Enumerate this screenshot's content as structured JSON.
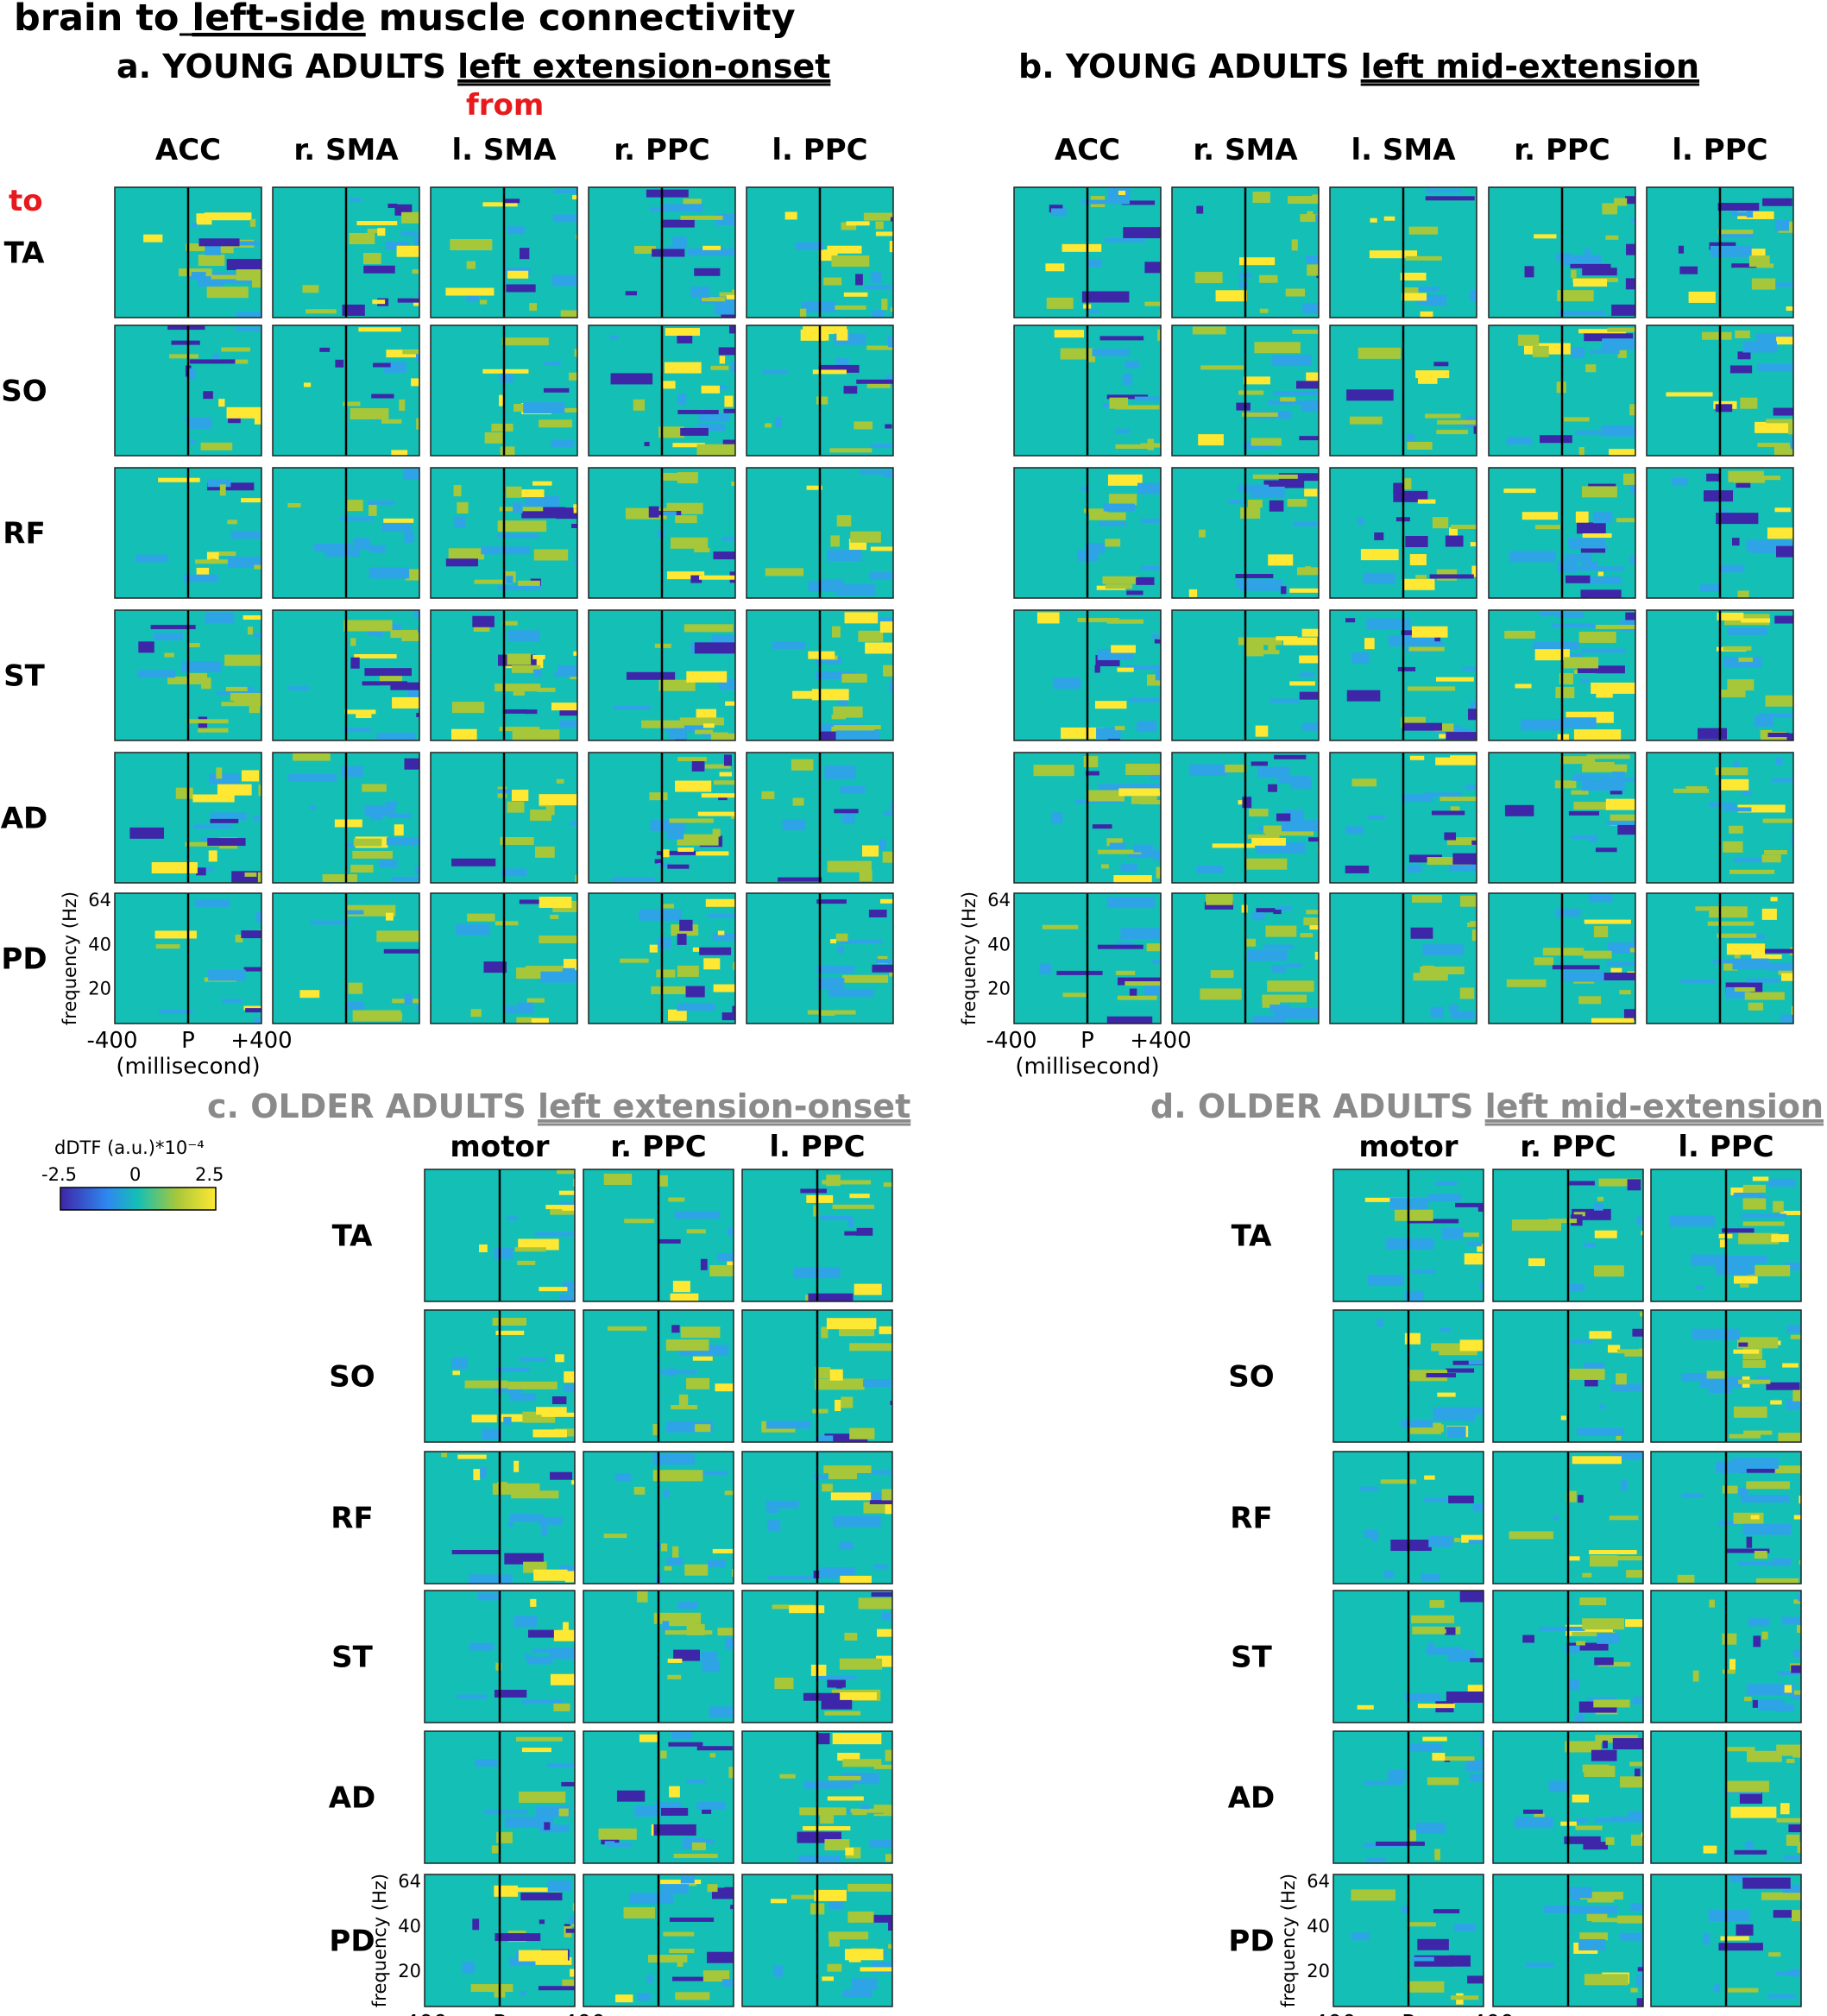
{
  "title": {
    "pre": "brain to ",
    "underlined": "left-side",
    "post": " muscle connectivity"
  },
  "labels": {
    "from": "from",
    "to": "to"
  },
  "colorbar": {
    "label": "dDTF (a.u.)*10⁻⁴",
    "ticks": [
      "-2.5",
      "0",
      "2.5"
    ],
    "colors": [
      "#3e26a8",
      "#2ea4e6",
      "#14c0b5",
      "#a7c73a",
      "#ffe833"
    ]
  },
  "axis": {
    "ylabel": "frequency (Hz)",
    "yticks": [
      "64",
      "40",
      "20"
    ],
    "xticks": [
      "-400",
      "P",
      "+400"
    ],
    "xunit": "(millisecond)"
  },
  "chart_data": [
    {
      "type": "heatmap",
      "panel": "a",
      "title_pre": "a. YOUNG ADULTS ",
      "title_underlined": "left extension-onset",
      "columns": [
        "ACC",
        "r. SMA",
        "l. SMA",
        "r. PPC",
        "l. PPC"
      ],
      "rows": [
        "TA",
        "SO",
        "RF",
        "ST",
        "AD",
        "PD"
      ],
      "x_range_ms": [
        -400,
        400
      ],
      "y_range_hz": [
        0,
        64
      ],
      "z_range": [
        -2.5,
        2.5
      ]
    },
    {
      "type": "heatmap",
      "panel": "b",
      "title_pre": "b. YOUNG ADULTS ",
      "title_underlined": "left mid-extension",
      "columns": [
        "ACC",
        "r. SMA",
        "l. SMA",
        "r. PPC",
        "l. PPC"
      ],
      "rows": [
        "TA",
        "SO",
        "RF",
        "ST",
        "AD",
        "PD"
      ],
      "x_range_ms": [
        -400,
        400
      ],
      "y_range_hz": [
        0,
        64
      ],
      "z_range": [
        -2.5,
        2.5
      ]
    },
    {
      "type": "heatmap",
      "panel": "c",
      "title_pre": "c. OLDER ADULTS ",
      "title_underlined": "left extension-onset",
      "columns": [
        "motor",
        "r. PPC",
        "l. PPC"
      ],
      "rows": [
        "TA",
        "SO",
        "RF",
        "ST",
        "AD",
        "PD"
      ],
      "x_range_ms": [
        -400,
        400
      ],
      "y_range_hz": [
        0,
        64
      ],
      "z_range": [
        -2.5,
        2.5
      ]
    },
    {
      "type": "heatmap",
      "panel": "d",
      "title_pre": "d. OLDER ADULTS ",
      "title_underlined": "left mid-extension",
      "columns": [
        "motor",
        "r. PPC",
        "l. PPC"
      ],
      "rows": [
        "TA",
        "SO",
        "RF",
        "ST",
        "AD",
        "PD"
      ],
      "x_range_ms": [
        -400,
        400
      ],
      "y_range_hz": [
        0,
        64
      ],
      "z_range": [
        -2.5,
        2.5
      ]
    }
  ]
}
